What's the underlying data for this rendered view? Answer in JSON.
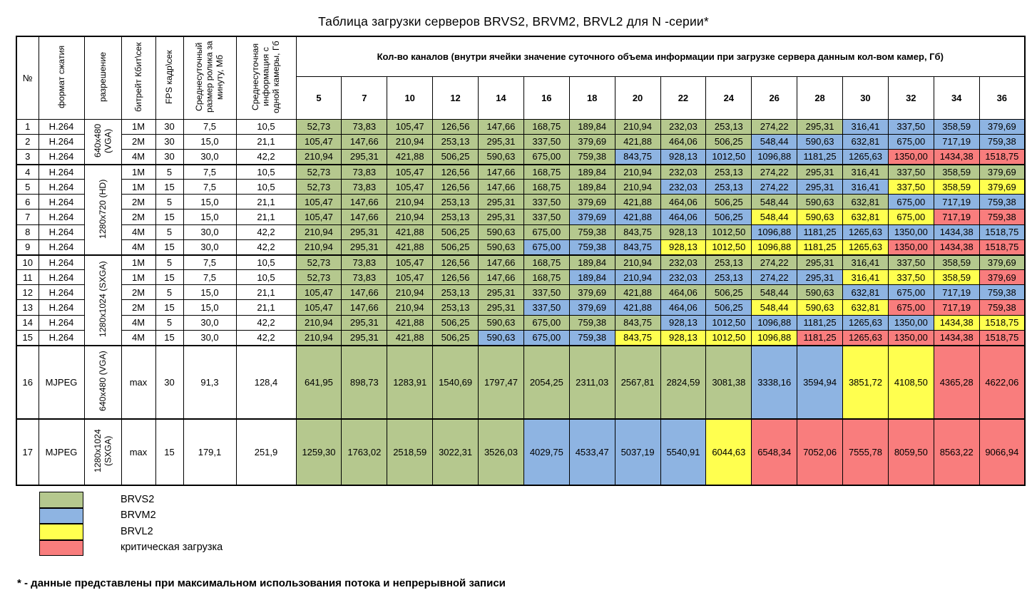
{
  "title": "Таблица загрузки серверов  BRVS2, BRVM2, BRVL2 для N -серии*",
  "colors": {
    "g": "#b5c88e",
    "b": "#8eb4e2",
    "y": "#ffff4f",
    "r": "#f97d7d"
  },
  "header": {
    "num": "№",
    "format": "формат сжатия",
    "resolution": "разрешение",
    "bitrate": "битрейт Кбит\\сек",
    "fps": "FPS кадр\\сек",
    "clip": "Среднесуточный размер ролика за минуту, Мб",
    "info": "Среднесуточная информация с одной камеры, Гб",
    "channels_title": "Кол-во каналов (внутри ячейки значение суточного объема информации при загрузке сервера данным кол-вом камер, Гб)",
    "channels": [
      "5",
      "7",
      "10",
      "12",
      "14",
      "16",
      "18",
      "20",
      "22",
      "24",
      "26",
      "28",
      "30",
      "32",
      "34",
      "36"
    ]
  },
  "res_groups": [
    {
      "label": "640x480 (VGA)",
      "start": 0,
      "span": 3
    },
    {
      "label": "1280x720 (HD)",
      "start": 3,
      "span": 6
    },
    {
      "label": "1280x1024 (SXGA)",
      "start": 9,
      "span": 6
    },
    {
      "label": "640x480 (VGA)",
      "start": 15,
      "span": 1
    },
    {
      "label": "1280x1024 (SXGA)",
      "start": 16,
      "span": 1
    }
  ],
  "rows": [
    {
      "num": "1",
      "format": "H.264",
      "bitrate": "1M",
      "fps": "30",
      "clip": "7,5",
      "info": "10,5",
      "values": [
        "52,73",
        "73,83",
        "105,47",
        "126,56",
        "147,66",
        "168,75",
        "189,84",
        "210,94",
        "232,03",
        "253,13",
        "274,22",
        "295,31",
        "316,41",
        "337,50",
        "358,59",
        "379,69"
      ],
      "colors": "ggggggggggggbbbb"
    },
    {
      "num": "2",
      "format": "H.264",
      "bitrate": "2M",
      "fps": "30",
      "clip": "15,0",
      "info": "21,1",
      "values": [
        "105,47",
        "147,66",
        "210,94",
        "253,13",
        "295,31",
        "337,50",
        "379,69",
        "421,88",
        "464,06",
        "506,25",
        "548,44",
        "590,63",
        "632,81",
        "675,00",
        "717,19",
        "759,38"
      ],
      "colors": "ggggggggggbbbbbb"
    },
    {
      "num": "3",
      "format": "H.264",
      "bitrate": "4M",
      "fps": "30",
      "clip": "30,0",
      "info": "42,2",
      "values": [
        "210,94",
        "295,31",
        "421,88",
        "506,25",
        "590,63",
        "675,00",
        "759,38",
        "843,75",
        "928,13",
        "1012,50",
        "1096,88",
        "1181,25",
        "1265,63",
        "1350,00",
        "1434,38",
        "1518,75"
      ],
      "colors": "gggggggbbbbbbrrr"
    },
    {
      "num": "4",
      "format": "H.264",
      "bitrate": "1M",
      "fps": "5",
      "clip": "7,5",
      "info": "10,5",
      "values": [
        "52,73",
        "73,83",
        "105,47",
        "126,56",
        "147,66",
        "168,75",
        "189,84",
        "210,94",
        "232,03",
        "253,13",
        "274,22",
        "295,31",
        "316,41",
        "337,50",
        "358,59",
        "379,69"
      ],
      "colors": "gggggggggggggggg"
    },
    {
      "num": "5",
      "format": "H.264",
      "bitrate": "1M",
      "fps": "15",
      "clip": "7,5",
      "info": "10,5",
      "values": [
        "52,73",
        "73,83",
        "105,47",
        "126,56",
        "147,66",
        "168,75",
        "189,84",
        "210,94",
        "232,03",
        "253,13",
        "274,22",
        "295,31",
        "316,41",
        "337,50",
        "358,59",
        "379,69"
      ],
      "colors": "ggggggggbbbbbyyy"
    },
    {
      "num": "6",
      "format": "H.264",
      "bitrate": "2M",
      "fps": "5",
      "clip": "15,0",
      "info": "21,1",
      "values": [
        "105,47",
        "147,66",
        "210,94",
        "253,13",
        "295,31",
        "337,50",
        "379,69",
        "421,88",
        "464,06",
        "506,25",
        "548,44",
        "590,63",
        "632,81",
        "675,00",
        "717,19",
        "759,38"
      ],
      "colors": "gggggggggggggbbb"
    },
    {
      "num": "7",
      "format": "H.264",
      "bitrate": "2M",
      "fps": "15",
      "clip": "15,0",
      "info": "21,1",
      "values": [
        "105,47",
        "147,66",
        "210,94",
        "253,13",
        "295,31",
        "337,50",
        "379,69",
        "421,88",
        "464,06",
        "506,25",
        "548,44",
        "590,63",
        "632,81",
        "675,00",
        "717,19",
        "759,38"
      ],
      "colors": "ggggggbbbbyyyyrr"
    },
    {
      "num": "8",
      "format": "H.264",
      "bitrate": "4M",
      "fps": "5",
      "clip": "30,0",
      "info": "42,2",
      "values": [
        "210,94",
        "295,31",
        "421,88",
        "506,25",
        "590,63",
        "675,00",
        "759,38",
        "843,75",
        "928,13",
        "1012,50",
        "1096,88",
        "1181,25",
        "1265,63",
        "1350,00",
        "1434,38",
        "1518,75"
      ],
      "colors": "ggggggggggbbbbbb"
    },
    {
      "num": "9",
      "format": "H.264",
      "bitrate": "4M",
      "fps": "15",
      "clip": "30,0",
      "info": "42,2",
      "values": [
        "210,94",
        "295,31",
        "421,88",
        "506,25",
        "590,63",
        "675,00",
        "759,38",
        "843,75",
        "928,13",
        "1012,50",
        "1096,88",
        "1181,25",
        "1265,63",
        "1350,00",
        "1434,38",
        "1518,75"
      ],
      "colors": "gggggbbbyyyyyrrr"
    },
    {
      "num": "10",
      "format": "H.264",
      "bitrate": "1M",
      "fps": "5",
      "clip": "7,5",
      "info": "10,5",
      "values": [
        "52,73",
        "73,83",
        "105,47",
        "126,56",
        "147,66",
        "168,75",
        "189,84",
        "210,94",
        "232,03",
        "253,13",
        "274,22",
        "295,31",
        "316,41",
        "337,50",
        "358,59",
        "379,69"
      ],
      "colors": "gggggggggggggggg"
    },
    {
      "num": "11",
      "format": "H.264",
      "bitrate": "1M",
      "fps": "15",
      "clip": "7,5",
      "info": "10,5",
      "values": [
        "52,73",
        "73,83",
        "105,47",
        "126,56",
        "147,66",
        "168,75",
        "189,84",
        "210,94",
        "232,03",
        "253,13",
        "274,22",
        "295,31",
        "316,41",
        "337,50",
        "358,59",
        "379,69"
      ],
      "colors": "ggggggbbbbbbyyyr"
    },
    {
      "num": "12",
      "format": "H.264",
      "bitrate": "2M",
      "fps": "5",
      "clip": "15,0",
      "info": "21,1",
      "values": [
        "105,47",
        "147,66",
        "210,94",
        "253,13",
        "295,31",
        "337,50",
        "379,69",
        "421,88",
        "464,06",
        "506,25",
        "548,44",
        "590,63",
        "632,81",
        "675,00",
        "717,19",
        "759,38"
      ],
      "colors": "ggggggggggggbbbb"
    },
    {
      "num": "13",
      "format": "H.264",
      "bitrate": "2M",
      "fps": "15",
      "clip": "15,0",
      "info": "21,1",
      "values": [
        "105,47",
        "147,66",
        "210,94",
        "253,13",
        "295,31",
        "337,50",
        "379,69",
        "421,88",
        "464,06",
        "506,25",
        "548,44",
        "590,63",
        "632,81",
        "675,00",
        "717,19",
        "759,38"
      ],
      "colors": "gggggbbbbbyyyrrr"
    },
    {
      "num": "14",
      "format": "H.264",
      "bitrate": "4M",
      "fps": "5",
      "clip": "30,0",
      "info": "42,2",
      "values": [
        "210,94",
        "295,31",
        "421,88",
        "506,25",
        "590,63",
        "675,00",
        "759,38",
        "843,75",
        "928,13",
        "1012,50",
        "1096,88",
        "1181,25",
        "1265,63",
        "1350,00",
        "1434,38",
        "1518,75"
      ],
      "colors": "ggggggggbbbbbbyy"
    },
    {
      "num": "15",
      "format": "H.264",
      "bitrate": "4M",
      "fps": "15",
      "clip": "30,0",
      "info": "42,2",
      "values": [
        "210,94",
        "295,31",
        "421,88",
        "506,25",
        "590,63",
        "675,00",
        "759,38",
        "843,75",
        "928,13",
        "1012,50",
        "1096,88",
        "1181,25",
        "1265,63",
        "1350,00",
        "1434,38",
        "1518,75"
      ],
      "colors": "ggggbbbyyyyrrrrr"
    },
    {
      "num": "16",
      "format": "MJPEG",
      "bitrate": "max",
      "fps": "30",
      "clip": "91,3",
      "info": "128,4",
      "values": [
        "641,95",
        "898,73",
        "1283,91",
        "1540,69",
        "1797,47",
        "2054,25",
        "2311,03",
        "2567,81",
        "2824,59",
        "3081,38",
        "3338,16",
        "3594,94",
        "3851,72",
        "4108,50",
        "4365,28",
        "4622,06"
      ],
      "colors": "ggggggggggbbyyrr"
    },
    {
      "num": "17",
      "format": "MJPEG",
      "bitrate": "max",
      "fps": "15",
      "clip": "179,1",
      "info": "251,9",
      "values": [
        "1259,30",
        "1763,02",
        "2518,59",
        "3022,31",
        "3526,03",
        "4029,75",
        "4533,47",
        "5037,19",
        "5540,91",
        "6044,63",
        "6548,34",
        "7052,06",
        "7555,78",
        "8059,50",
        "8563,22",
        "9066,94"
      ],
      "colors": "gggggbbbbyrrrrrr"
    }
  ],
  "legend": [
    {
      "key": "g",
      "label": "BRVS2"
    },
    {
      "key": "b",
      "label": "BRVM2"
    },
    {
      "key": "y",
      "label": "BRVL2"
    },
    {
      "key": "r",
      "label": "критическая загрузка"
    }
  ],
  "footnote": "* - данные представлены при максимальном использования потока и непрерывной записи"
}
